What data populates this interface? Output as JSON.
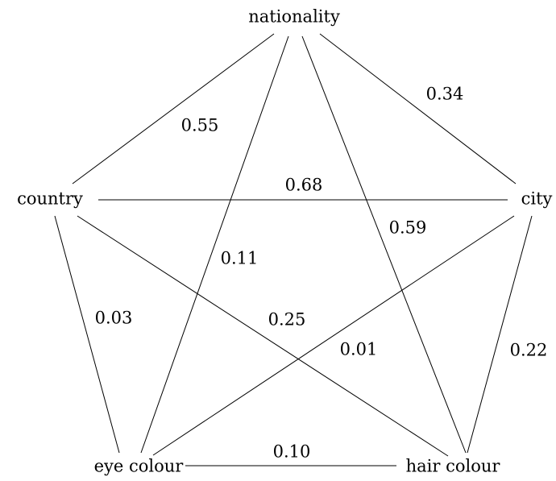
{
  "nodes": [
    {
      "label": "nationality"
    },
    {
      "label": "country"
    },
    {
      "label": "city"
    },
    {
      "label": "eye colour"
    },
    {
      "label": "hair colour"
    }
  ],
  "edges": [
    {
      "label": "0.55"
    },
    {
      "label": "0.34"
    },
    {
      "label": "0.11"
    },
    {
      "label": "0.59"
    },
    {
      "label": "0.68"
    },
    {
      "label": "0.03"
    },
    {
      "label": "0.25"
    },
    {
      "label": "0.01"
    },
    {
      "label": "0.22"
    },
    {
      "label": "0.10"
    }
  ]
}
